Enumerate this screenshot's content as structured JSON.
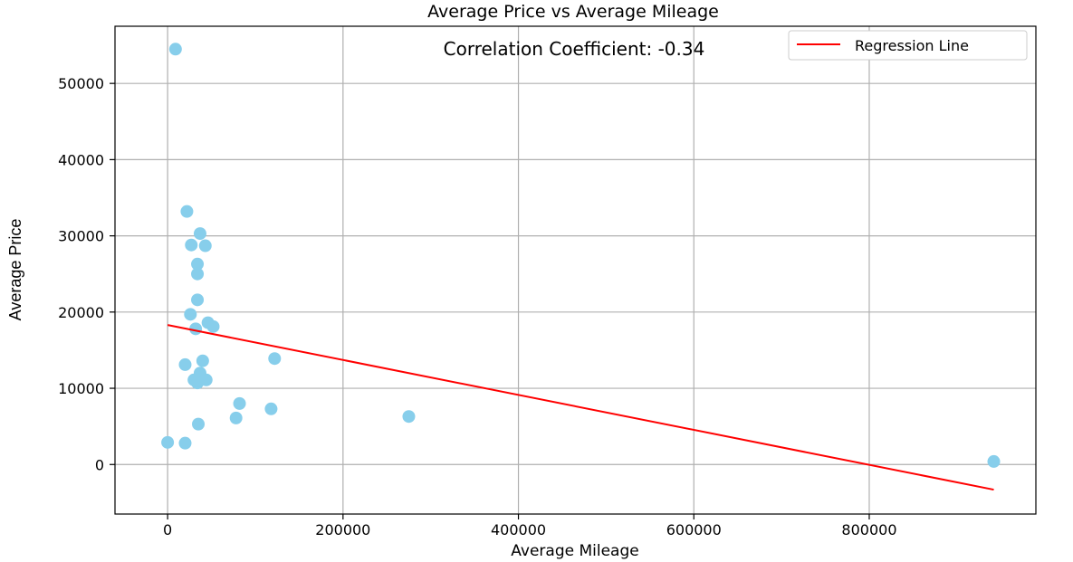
{
  "chart_data": {
    "type": "scatter",
    "title": "Average Price vs Average Mileage",
    "xlabel": "Average Mileage",
    "ylabel": "Average Price",
    "annotation": "Correlation Coefficient: -0.34",
    "xlim": [
      -60000,
      990000
    ],
    "ylim": [
      -6500,
      57500
    ],
    "xticks": [
      0,
      200000,
      400000,
      600000,
      800000
    ],
    "yticks": [
      0,
      10000,
      20000,
      30000,
      40000,
      50000
    ],
    "grid": true,
    "legend_position": "top-right",
    "legend": [
      "Regression Line"
    ],
    "point_color": "#87ceeb",
    "line_color": "#ff0000",
    "points": [
      {
        "x": 9000,
        "y": 54500
      },
      {
        "x": 22000,
        "y": 33200
      },
      {
        "x": 37000,
        "y": 30300
      },
      {
        "x": 27000,
        "y": 28800
      },
      {
        "x": 43000,
        "y": 28700
      },
      {
        "x": 34000,
        "y": 26300
      },
      {
        "x": 34000,
        "y": 25000
      },
      {
        "x": 34000,
        "y": 21600
      },
      {
        "x": 26000,
        "y": 19700
      },
      {
        "x": 32000,
        "y": 17800
      },
      {
        "x": 46000,
        "y": 18600
      },
      {
        "x": 52000,
        "y": 18100
      },
      {
        "x": 122000,
        "y": 13900
      },
      {
        "x": 40000,
        "y": 13600
      },
      {
        "x": 20000,
        "y": 13100
      },
      {
        "x": 37000,
        "y": 12000
      },
      {
        "x": 30000,
        "y": 11100
      },
      {
        "x": 44000,
        "y": 11100
      },
      {
        "x": 34000,
        "y": 10700
      },
      {
        "x": 82000,
        "y": 8000
      },
      {
        "x": 118000,
        "y": 7300
      },
      {
        "x": 78000,
        "y": 6100
      },
      {
        "x": 275000,
        "y": 6300
      },
      {
        "x": 35000,
        "y": 5300
      },
      {
        "x": 0,
        "y": 2900
      },
      {
        "x": 20000,
        "y": 2800
      },
      {
        "x": 942000,
        "y": 400
      }
    ],
    "regression_line": {
      "x": [
        0,
        942000
      ],
      "y": [
        18300,
        -3300
      ]
    }
  }
}
